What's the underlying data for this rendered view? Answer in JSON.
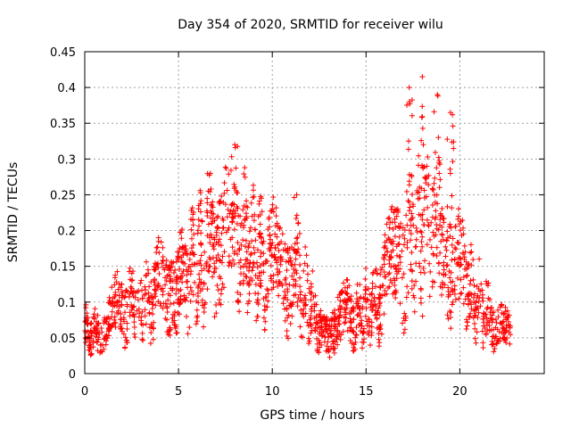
{
  "chart_data": {
    "type": "scatter",
    "title": "Day 354 of 2020, SRMTID for receiver wilu",
    "xlabel": "GPS time / hours",
    "ylabel": "SRMTID / TECUs",
    "xlim": [
      0,
      24.5
    ],
    "ylim": [
      0,
      0.45
    ],
    "xticks": [
      0,
      5,
      10,
      15,
      20
    ],
    "xtick_labels": [
      "0",
      "5",
      "10",
      "15",
      "20"
    ],
    "yticks": [
      0,
      0.05,
      0.1,
      0.15,
      0.2,
      0.25,
      0.3,
      0.35,
      0.4,
      0.45
    ],
    "ytick_labels": [
      "0",
      "0.05",
      "0.1",
      "0.15",
      "0.2",
      "0.25",
      "0.3",
      "0.35",
      "0.4",
      "0.45"
    ],
    "grid": true,
    "marker": "+",
    "color": "#ff0000",
    "series": [
      {
        "name": "SRMTID",
        "x_range": [
          0,
          22.7
        ],
        "trend": [
          {
            "x": 0.0,
            "y": 0.06
          },
          {
            "x": 1.0,
            "y": 0.055
          },
          {
            "x": 2.0,
            "y": 0.1
          },
          {
            "x": 3.0,
            "y": 0.09
          },
          {
            "x": 4.0,
            "y": 0.12
          },
          {
            "x": 5.0,
            "y": 0.13
          },
          {
            "x": 6.0,
            "y": 0.15
          },
          {
            "x": 7.0,
            "y": 0.18
          },
          {
            "x": 8.0,
            "y": 0.2
          },
          {
            "x": 9.0,
            "y": 0.16
          },
          {
            "x": 10.0,
            "y": 0.15
          },
          {
            "x": 11.0,
            "y": 0.14
          },
          {
            "x": 12.0,
            "y": 0.1
          },
          {
            "x": 12.7,
            "y": 0.05
          },
          {
            "x": 13.5,
            "y": 0.08
          },
          {
            "x": 14.5,
            "y": 0.08
          },
          {
            "x": 15.5,
            "y": 0.1
          },
          {
            "x": 16.5,
            "y": 0.15
          },
          {
            "x": 17.5,
            "y": 0.18
          },
          {
            "x": 18.5,
            "y": 0.2
          },
          {
            "x": 19.5,
            "y": 0.17
          },
          {
            "x": 20.5,
            "y": 0.12
          },
          {
            "x": 21.5,
            "y": 0.08
          },
          {
            "x": 22.7,
            "y": 0.05
          }
        ],
        "peaks": [
          {
            "x": 6.7,
            "y": 0.28
          },
          {
            "x": 8.0,
            "y": 0.32
          },
          {
            "x": 11.3,
            "y": 0.25
          },
          {
            "x": 17.3,
            "y": 0.4
          },
          {
            "x": 18.0,
            "y": 0.415
          },
          {
            "x": 18.8,
            "y": 0.39
          },
          {
            "x": 19.5,
            "y": 0.365
          }
        ]
      }
    ]
  }
}
